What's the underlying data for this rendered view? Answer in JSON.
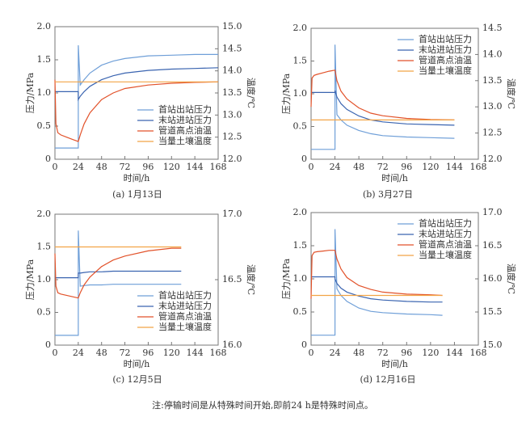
{
  "chart_data": [
    {
      "type": "line",
      "caption": "(a) 1月13日",
      "x_label": "时间/h",
      "y_label": "压力/MPa",
      "y2_label": "温度/℃",
      "legend": "lower right",
      "x": [
        0,
        1,
        3,
        6,
        12,
        18,
        24,
        24,
        26,
        30,
        36,
        48,
        60,
        72,
        96,
        120,
        144,
        168
      ],
      "xlim": [
        0,
        168
      ],
      "xticks": [
        0,
        24,
        48,
        72,
        96,
        120,
        144,
        168
      ],
      "ylim": [
        0,
        2
      ],
      "yticks": [
        0,
        0.5,
        {
          "value": 1,
          "label": "1.0"
        },
        1.5,
        {
          "value": 2,
          "label": "2.0"
        }
      ],
      "y2lim": [
        12,
        15
      ],
      "y2ticks": [
        {
          "value": 12,
          "label": "12.0"
        },
        12.5,
        {
          "value": 13,
          "label": "13.0"
        },
        13.5,
        {
          "value": 14,
          "label": "14.0"
        },
        14.5,
        {
          "value": 15,
          "label": "15.0"
        }
      ],
      "series": [
        {
          "name": "首站出站压力",
          "color": "#6f9fd8",
          "values": [
            0.17,
            0.17,
            0.17,
            0.17,
            0.17,
            0.17,
            0.17,
            1.72,
            1.12,
            1.2,
            1.3,
            1.42,
            1.48,
            1.52,
            1.56,
            1.57,
            1.58,
            1.58
          ]
        },
        {
          "name": "末站进站压力",
          "color": "#3a64b0",
          "values": [
            1.02,
            1.02,
            1.02,
            1.02,
            1.02,
            1.02,
            1.02,
            0.9,
            0.95,
            1.02,
            1.1,
            1.2,
            1.26,
            1.3,
            1.34,
            1.36,
            1.37,
            1.38
          ]
        },
        {
          "name": "管道高点油温",
          "color": "#e2522a",
          "axis": "y2",
          "values": [
            13.8,
            12.8,
            12.6,
            12.55,
            12.5,
            12.45,
            12.4,
            12.4,
            12.55,
            12.8,
            13.05,
            13.35,
            13.5,
            13.6,
            13.68,
            13.72,
            13.74,
            13.75
          ]
        },
        {
          "name": "当量土壤温度",
          "color": "#f2a446",
          "axis": "y2",
          "values": [
            13.75,
            13.75,
            13.75,
            13.75,
            13.75,
            13.75,
            13.75,
            13.75,
            13.75,
            13.75,
            13.75,
            13.75,
            13.75,
            13.75,
            13.75,
            13.75,
            13.75,
            13.75
          ]
        }
      ]
    },
    {
      "type": "line",
      "caption": "(b) 3月27日",
      "x_label": "时间/h",
      "y_label": "压力/MPa",
      "y2_label": "温度/℃",
      "legend": "upper right",
      "x": [
        0,
        1,
        3,
        6,
        12,
        18,
        24,
        24,
        26,
        30,
        36,
        48,
        60,
        72,
        96,
        120,
        144
      ],
      "xlim": [
        0,
        168
      ],
      "xticks": [
        0,
        24,
        48,
        72,
        96,
        120,
        144,
        168
      ],
      "ylim": [
        0,
        2
      ],
      "yticks": [
        0,
        0.5,
        {
          "value": 1,
          "label": "1.0"
        },
        1.5,
        {
          "value": 2,
          "label": "2.0"
        }
      ],
      "y2lim": [
        12,
        14.5
      ],
      "y2ticks": [
        {
          "value": 12,
          "label": "12.0"
        },
        12.5,
        {
          "value": 13,
          "label": "13.0"
        },
        13.5,
        {
          "value": 14,
          "label": "14.0"
        },
        14.5
      ],
      "series": [
        {
          "name": "首站出站压力",
          "color": "#6f9fd8",
          "values": [
            0.15,
            0.15,
            0.15,
            0.15,
            0.15,
            0.15,
            0.15,
            1.75,
            0.68,
            0.6,
            0.52,
            0.44,
            0.39,
            0.36,
            0.34,
            0.33,
            0.32
          ]
        },
        {
          "name": "末站进站压力",
          "color": "#3a64b0",
          "values": [
            1.02,
            1.02,
            1.02,
            1.02,
            1.02,
            1.02,
            1.02,
            1.05,
            0.95,
            0.85,
            0.76,
            0.66,
            0.6,
            0.57,
            0.54,
            0.53,
            0.52
          ]
        },
        {
          "name": "管道高点油温",
          "color": "#e2522a",
          "axis": "y2",
          "values": [
            13.0,
            13.55,
            13.6,
            13.62,
            13.65,
            13.68,
            13.7,
            13.7,
            13.5,
            13.3,
            13.15,
            12.98,
            12.88,
            12.83,
            12.78,
            12.76,
            12.75
          ]
        },
        {
          "name": "当量土壤温度",
          "color": "#f2a446",
          "axis": "y2",
          "values": [
            12.75,
            12.75,
            12.75,
            12.75,
            12.75,
            12.75,
            12.75,
            12.75,
            12.75,
            12.75,
            12.75,
            12.75,
            12.75,
            12.75,
            12.75,
            12.75,
            12.75
          ]
        }
      ]
    },
    {
      "type": "line",
      "caption": "(c) 12月5日",
      "x_label": "时间/h",
      "y_label": "压力/MPa",
      "y2_label": "温度/℃",
      "legend": "lower right",
      "x": [
        0,
        1,
        3,
        6,
        12,
        18,
        24,
        24,
        26,
        30,
        36,
        48,
        60,
        72,
        96,
        120,
        130
      ],
      "xlim": [
        0,
        168
      ],
      "xticks": [
        0,
        24,
        48,
        72,
        96,
        120,
        144,
        168
      ],
      "ylim": [
        0,
        2
      ],
      "yticks": [
        0,
        0.5,
        {
          "value": 1,
          "label": "1.0"
        },
        1.5,
        {
          "value": 2,
          "label": "2.0"
        }
      ],
      "y2lim": [
        16,
        17
      ],
      "y2ticks": [
        {
          "value": 16,
          "label": "16.0"
        },
        16.5,
        {
          "value": 17,
          "label": "17.0"
        }
      ],
      "series": [
        {
          "name": "首站出站压力",
          "color": "#6f9fd8",
          "values": [
            0.15,
            0.15,
            0.15,
            0.15,
            0.15,
            0.15,
            0.15,
            1.75,
            0.9,
            0.91,
            0.92,
            0.92,
            0.93,
            0.93,
            0.93,
            0.93,
            0.93
          ]
        },
        {
          "name": "末站进站压力",
          "color": "#3a64b0",
          "values": [
            1.03,
            1.03,
            1.03,
            1.03,
            1.03,
            1.03,
            1.03,
            1.1,
            1.1,
            1.11,
            1.12,
            1.12,
            1.13,
            1.13,
            1.13,
            1.13,
            1.13
          ]
        },
        {
          "name": "管道高点油温",
          "color": "#e2522a",
          "axis": "y2",
          "values": [
            16.7,
            16.45,
            16.4,
            16.39,
            16.38,
            16.37,
            16.36,
            16.36,
            16.4,
            16.46,
            16.52,
            16.6,
            16.65,
            16.68,
            16.72,
            16.74,
            16.74
          ]
        },
        {
          "name": "当量土壤温度",
          "color": "#f2a446",
          "axis": "y2",
          "values": [
            16.75,
            16.75,
            16.75,
            16.75,
            16.75,
            16.75,
            16.75,
            16.75,
            16.75,
            16.75,
            16.75,
            16.75,
            16.75,
            16.75,
            16.75,
            16.75,
            16.75
          ]
        }
      ]
    },
    {
      "type": "line",
      "caption": "(d) 12月16日",
      "x_label": "时间/h",
      "y_label": "压力/MPa",
      "y2_label": "温度/℃",
      "legend": "upper right",
      "x": [
        0,
        1,
        3,
        6,
        12,
        18,
        24,
        24,
        26,
        30,
        36,
        48,
        60,
        72,
        96,
        120,
        132
      ],
      "xlim": [
        0,
        168
      ],
      "xticks": [
        0,
        24,
        48,
        72,
        96,
        120,
        144,
        168
      ],
      "ylim": [
        0,
        2
      ],
      "yticks": [
        0,
        0.5,
        {
          "value": 1,
          "label": "1.0"
        },
        1.5,
        {
          "value": 2,
          "label": "2.0"
        }
      ],
      "y2lim": [
        15,
        17
      ],
      "y2ticks": [
        {
          "value": 15,
          "label": "15.0"
        },
        15.5,
        {
          "value": 16,
          "label": "16.0"
        },
        16.5,
        {
          "value": 17,
          "label": "17.0"
        }
      ],
      "series": [
        {
          "name": "首站出站压力",
          "color": "#6f9fd8",
          "values": [
            0.15,
            0.15,
            0.15,
            0.15,
            0.15,
            0.15,
            0.15,
            1.75,
            0.85,
            0.75,
            0.66,
            0.56,
            0.51,
            0.49,
            0.47,
            0.46,
            0.45
          ]
        },
        {
          "name": "末站进站压力",
          "color": "#3a64b0",
          "values": [
            1.03,
            1.03,
            1.03,
            1.03,
            1.03,
            1.03,
            1.03,
            1.0,
            0.93,
            0.86,
            0.8,
            0.74,
            0.7,
            0.68,
            0.66,
            0.65,
            0.65
          ]
        },
        {
          "name": "管道高点油温",
          "color": "#e2522a",
          "axis": "y2",
          "values": [
            15.7,
            16.35,
            16.4,
            16.41,
            16.42,
            16.43,
            16.43,
            16.43,
            16.3,
            16.15,
            16.02,
            15.9,
            15.84,
            15.8,
            15.77,
            15.76,
            15.75
          ]
        },
        {
          "name": "当量土壤温度",
          "color": "#f2a446",
          "axis": "y2",
          "values": [
            15.75,
            15.75,
            15.75,
            15.75,
            15.75,
            15.75,
            15.75,
            15.75,
            15.75,
            15.75,
            15.75,
            15.75,
            15.75,
            15.75,
            15.75,
            15.75,
            15.75
          ]
        }
      ]
    }
  ],
  "note": "注:停输时间是从特殊时间开始,即前24 h是特殊时间点。"
}
